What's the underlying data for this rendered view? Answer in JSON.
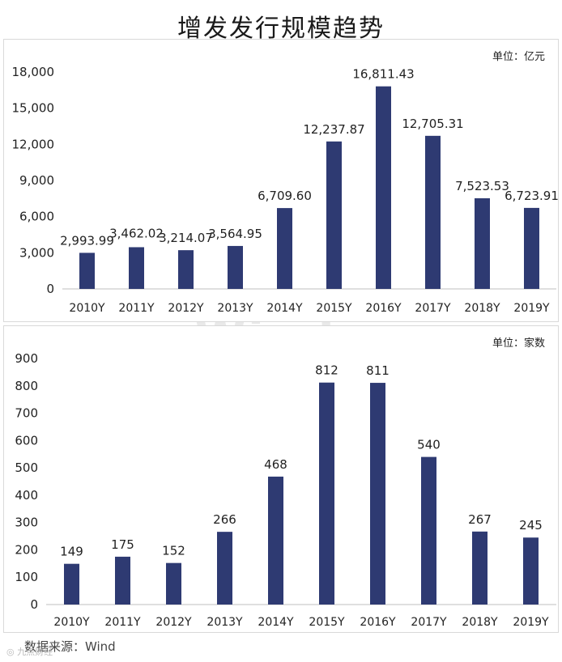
{
  "title": "增发发行规模趋势",
  "watermark": "Wind",
  "source": "数据来源：Wind",
  "stamp": "◎ 九点财经",
  "colors": {
    "bar": "#2E3A72",
    "axis": "#bfbfbf"
  },
  "chart_data": [
    {
      "type": "bar",
      "unit": "单位：亿元",
      "categories": [
        "2010Y",
        "2011Y",
        "2012Y",
        "2013Y",
        "2014Y",
        "2015Y",
        "2016Y",
        "2017Y",
        "2018Y",
        "2019Y"
      ],
      "values": [
        2993.99,
        3462.02,
        3214.07,
        3564.95,
        6709.6,
        12237.87,
        16811.43,
        12705.31,
        7523.53,
        6723.91
      ],
      "value_labels": [
        "2,993.99",
        "3,462.02",
        "3,214.07",
        "3,564.95",
        "6,709.60",
        "12,237.87",
        "16,811.43",
        "12,705.31",
        "7,523.53",
        "6,723.91"
      ],
      "yticks": [
        "0",
        "3,000",
        "6,000",
        "9,000",
        "12,000",
        "15,000",
        "18,000"
      ],
      "ylim": [
        0,
        18000
      ]
    },
    {
      "type": "bar",
      "unit": "单位：家数",
      "categories": [
        "2010Y",
        "2011Y",
        "2012Y",
        "2013Y",
        "2014Y",
        "2015Y",
        "2016Y",
        "2017Y",
        "2018Y",
        "2019Y"
      ],
      "values": [
        149,
        175,
        152,
        266,
        468,
        812,
        811,
        540,
        267,
        245
      ],
      "value_labels": [
        "149",
        "175",
        "152",
        "266",
        "468",
        "812",
        "811",
        "540",
        "267",
        "245"
      ],
      "yticks": [
        "0",
        "100",
        "200",
        "300",
        "400",
        "500",
        "600",
        "700",
        "800",
        "900"
      ],
      "ylim": [
        0,
        900
      ]
    }
  ]
}
